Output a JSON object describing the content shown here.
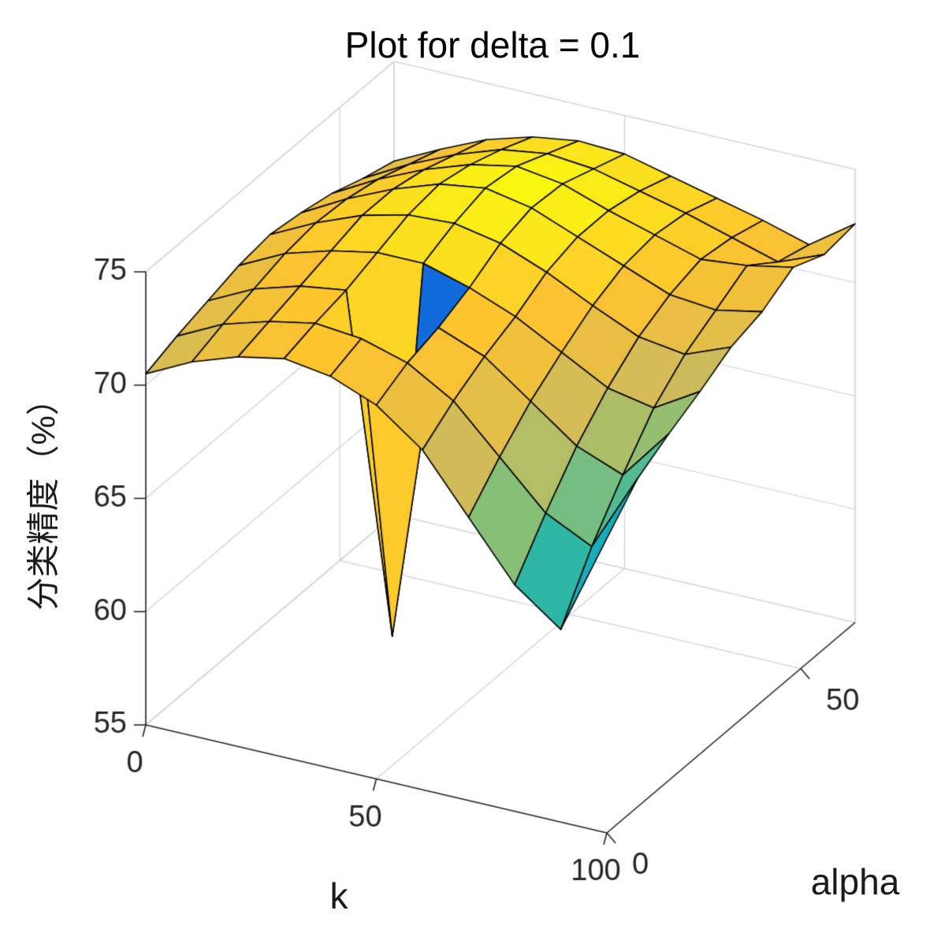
{
  "chart_data": {
    "type": "surface",
    "title": "Plot for delta = 0.1",
    "xlabel": "k",
    "ylabel": "alpha",
    "zlabel": "分类精度（%）",
    "x": [
      0,
      10,
      20,
      30,
      40,
      50,
      60,
      70,
      80,
      90,
      100
    ],
    "y": [
      0,
      8,
      16,
      24,
      32,
      40,
      48,
      56,
      64
    ],
    "z": [
      [
        70.5,
        71.5,
        72.2,
        72.6,
        72.3,
        71.5,
        70.0,
        67.5,
        65.0,
        63.5,
        68.0
      ],
      [
        71.0,
        72.0,
        72.6,
        73.0,
        72.8,
        72.2,
        71.0,
        69.0,
        67.0,
        66.0,
        69.5
      ],
      [
        71.4,
        72.4,
        73.0,
        73.3,
        58.5,
        72.6,
        71.8,
        70.3,
        68.8,
        68.0,
        70.3
      ],
      [
        71.8,
        72.8,
        73.4,
        73.8,
        73.8,
        73.2,
        72.4,
        71.3,
        70.2,
        69.8,
        71.0
      ],
      [
        72.0,
        73.0,
        73.8,
        74.3,
        74.4,
        74.0,
        73.2,
        72.2,
        71.3,
        71.0,
        71.8
      ],
      [
        71.8,
        72.9,
        73.8,
        74.5,
        74.8,
        74.4,
        73.6,
        72.8,
        72.0,
        71.8,
        72.2
      ],
      [
        71.5,
        72.6,
        73.5,
        74.2,
        74.6,
        74.3,
        73.6,
        73.0,
        72.4,
        72.6,
        73.0
      ],
      [
        71.0,
        72.1,
        73.0,
        73.7,
        74.0,
        73.8,
        73.3,
        72.8,
        72.2,
        71.6,
        72.4
      ],
      [
        70.6,
        71.6,
        72.5,
        73.1,
        73.4,
        73.3,
        72.8,
        72.3,
        71.8,
        71.2,
        72.6
      ]
    ],
    "xlim": [
      0,
      100
    ],
    "ylim": [
      0,
      64
    ],
    "zlim": [
      55,
      75
    ],
    "xticks": [
      0,
      50,
      100
    ],
    "yticks": [
      0,
      50
    ],
    "zticks": [
      55,
      60,
      65,
      70,
      75
    ],
    "caxis": [
      55,
      75
    ],
    "view": {
      "azimuth": -37.5,
      "elevation": 30
    },
    "grid": true,
    "colormap": {
      "name": "parula",
      "stops": [
        [
          0.0,
          "#352a87"
        ],
        [
          0.125,
          "#0f5cdd"
        ],
        [
          0.25,
          "#1481d6"
        ],
        [
          0.375,
          "#06a4ca"
        ],
        [
          0.5,
          "#2eb7a4"
        ],
        [
          0.625,
          "#87bf77"
        ],
        [
          0.75,
          "#d1bb59"
        ],
        [
          0.875,
          "#fdc32f"
        ],
        [
          1.0,
          "#f9fb0e"
        ]
      ]
    },
    "colors": {
      "background": "#ffffff",
      "mesh_edge": "#000000",
      "grid_line": "#d2d2d2",
      "axis_line": "#262626",
      "tick_text": "#262626"
    }
  }
}
